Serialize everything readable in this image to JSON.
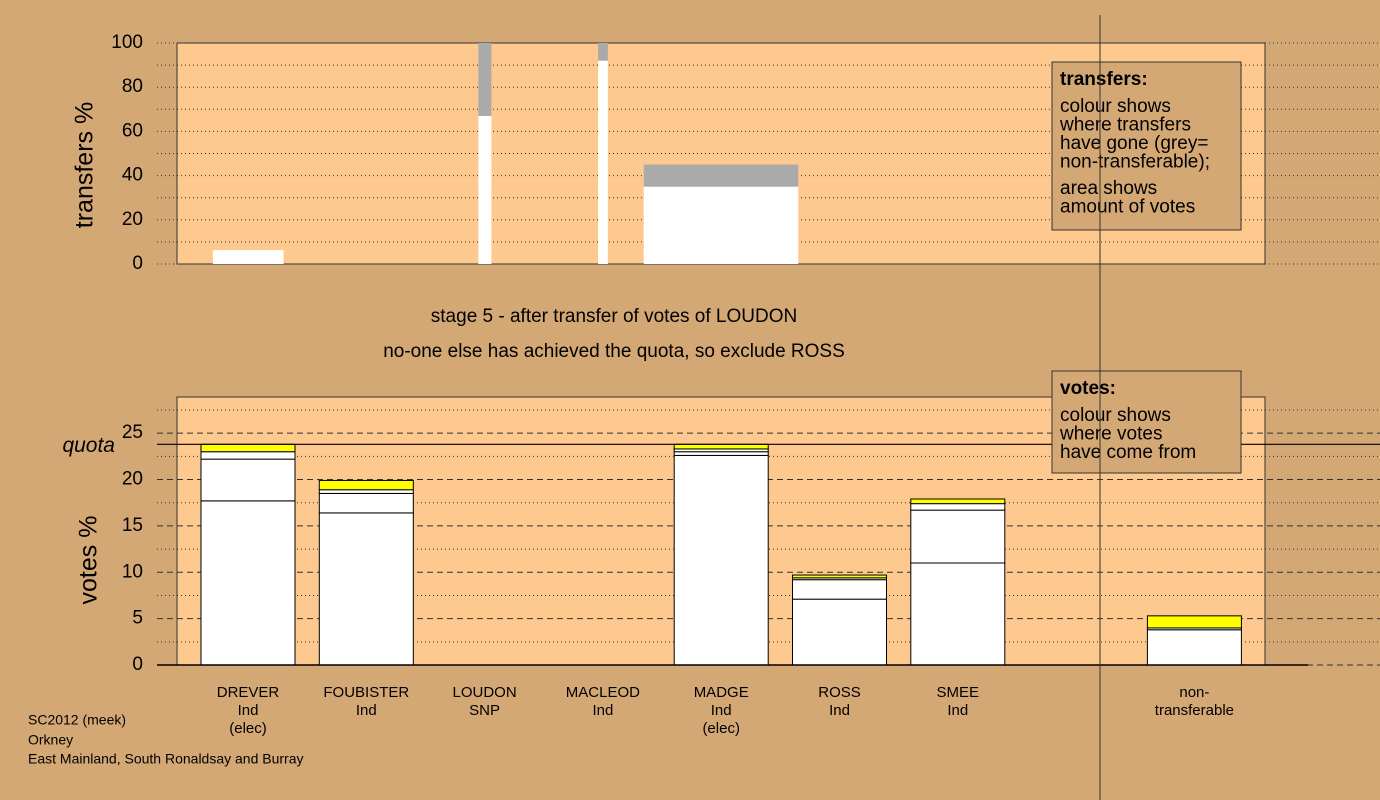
{
  "chart_data": [
    {
      "type": "bar",
      "ylabel": "transfers %",
      "ylim": [
        0,
        100
      ],
      "yticks": [
        0,
        20,
        40,
        60,
        80,
        100
      ],
      "yminor": [
        10,
        30,
        50,
        70,
        90
      ],
      "xlim": [
        0,
        100
      ],
      "bar_spans": [
        [
          3.3,
          9.8
        ],
        [
          27.7,
          28.9
        ],
        [
          38.7,
          39.6
        ],
        [
          42.9,
          57.1
        ]
      ],
      "series": [
        {
          "color": "#ffffff",
          "values": [
            6.3,
            67,
            92,
            35
          ]
        },
        {
          "color": "#aaaaaa",
          "values": [
            0,
            33,
            8,
            10
          ]
        }
      ],
      "legend_note": {
        "title": "transfers:",
        "paragraphs": [
          [
            "colour shows",
            "where transfers",
            "have gone (grey=",
            "non-transferable);"
          ],
          [
            "area shows",
            "amount of votes"
          ]
        ]
      }
    },
    {
      "type": "bar",
      "ylabel": "votes %",
      "ylim": [
        0,
        28.9
      ],
      "yticks": [
        0,
        5,
        10,
        15,
        20,
        25
      ],
      "yminor": [
        2.5,
        7.5,
        12.5,
        17.5,
        22.5,
        27.5
      ],
      "quota": 23.8,
      "quota_label": "quota",
      "categories": [
        [
          "DREVER",
          "Ind",
          "(elec)"
        ],
        [
          "FOUBISTER",
          "Ind"
        ],
        [
          "LOUDON",
          "SNP"
        ],
        [
          "MACLEOD",
          "Ind"
        ],
        [
          "MADGE",
          "Ind",
          "(elec)"
        ],
        [
          "ROSS",
          "Ind"
        ],
        [
          "SMEE",
          "Ind"
        ],
        null,
        [
          "non-",
          "transferable"
        ]
      ],
      "series": [
        {
          "color": "#ffffff",
          "values": [
            17.7,
            16.4,
            0,
            0,
            22.6,
            7.1,
            11.0,
            null,
            3.8
          ]
        },
        {
          "color": "#ffffff",
          "values": [
            4.5,
            2.1,
            0,
            0,
            0.4,
            2.1,
            5.7,
            null,
            0.2
          ]
        },
        {
          "color": "#ffffff",
          "values": [
            0.8,
            0.4,
            0,
            0,
            0.3,
            0.2,
            0.7,
            null,
            0
          ]
        },
        {
          "color": "#ffff00",
          "values": [
            0.8,
            1.0,
            0,
            0,
            0.5,
            0.3,
            0.5,
            null,
            1.3
          ]
        }
      ],
      "legend_note": {
        "title": "votes:",
        "paragraphs": [
          [
            "colour shows",
            "where votes",
            "have come from"
          ]
        ]
      }
    }
  ],
  "notes": [
    "stage 5 - after transfer of votes of LOUDON",
    "no-one else has achieved the quota, so exclude ROSS"
  ],
  "footer": [
    "SC2012 (meek)",
    "Orkney",
    "East Mainland, South Ronaldsay and Burray"
  ]
}
